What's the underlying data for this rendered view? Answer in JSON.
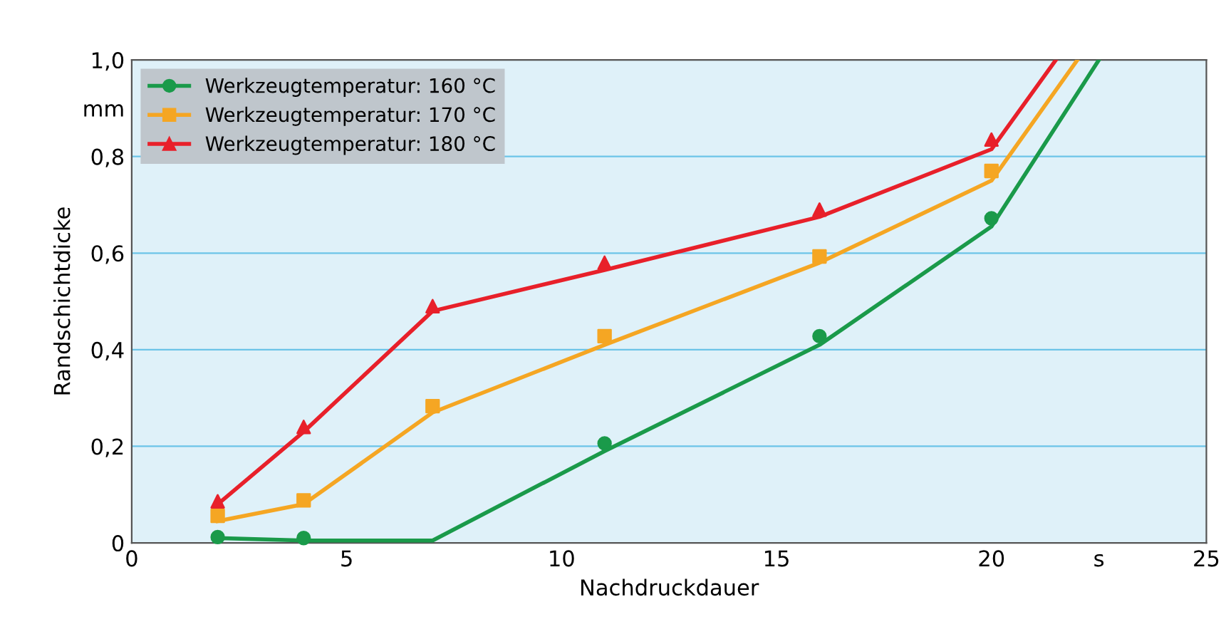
{
  "chart_data": {
    "type": "line",
    "xlabel": "Nachdruckdauer",
    "ylabel": "Randschichtdicke",
    "xlim": [
      0,
      25
    ],
    "ylim": [
      0,
      1.0
    ],
    "xticks": [
      0,
      5,
      10,
      15,
      20,
      {
        "value": 22.5,
        "label": "s"
      },
      25
    ],
    "yticks": [
      0,
      {
        "value": 0.2,
        "label": "0,2"
      },
      {
        "value": 0.4,
        "label": "0,4"
      },
      {
        "value": 0.6,
        "label": "0,6"
      },
      {
        "value": 0.8,
        "label": "0,8"
      },
      {
        "value": 0.9,
        "label": "mm"
      },
      {
        "value": 1.0,
        "label": "1,0"
      }
    ],
    "grid": "y",
    "legend": "top left",
    "series": [
      {
        "color": "#1a9a4a",
        "x": [
          2,
          4,
          7,
          11,
          16,
          20,
          22.5
        ],
        "values": [
          0.01,
          0.005,
          0.005,
          0.19,
          0.41,
          0.655,
          1.0
        ]
      },
      {
        "color": "#f5a623",
        "x": [
          2,
          4,
          7,
          11,
          16,
          20,
          22.0
        ],
        "values": [
          0.045,
          0.08,
          0.27,
          0.41,
          0.58,
          0.75,
          1.0
        ]
      },
      {
        "color": "#e8202a",
        "x": [
          2,
          4,
          7,
          11,
          16,
          20,
          21.5
        ],
        "values": [
          0.08,
          0.23,
          0.48,
          0.565,
          0.675,
          0.815,
          1.0
        ]
      },
      {
        "type": "scatter",
        "name": "Werkzeugtemperatur: 160 °C",
        "color": "#1a9a4a",
        "marker": "circle",
        "x": [
          2,
          4,
          11,
          16,
          20
        ],
        "values": [
          0.012,
          0.01,
          0.206,
          0.428,
          0.672
        ]
      },
      {
        "type": "scatter",
        "name": "Werkzeugtemperatur: 170 °C",
        "color": "#f5a623",
        "marker": "square",
        "x": [
          2,
          4,
          7,
          11,
          16,
          20
        ],
        "values": [
          0.056,
          0.088,
          0.283,
          0.428,
          0.593,
          0.77
        ]
      },
      {
        "type": "scatter",
        "name": "Werkzeugtemperatur: 180 °C",
        "color": "#e8202a",
        "marker": "triangle",
        "x": [
          2,
          4,
          7,
          11,
          16,
          20
        ],
        "values": [
          0.086,
          0.24,
          0.49,
          0.58,
          0.69,
          0.835
        ]
      }
    ]
  }
}
